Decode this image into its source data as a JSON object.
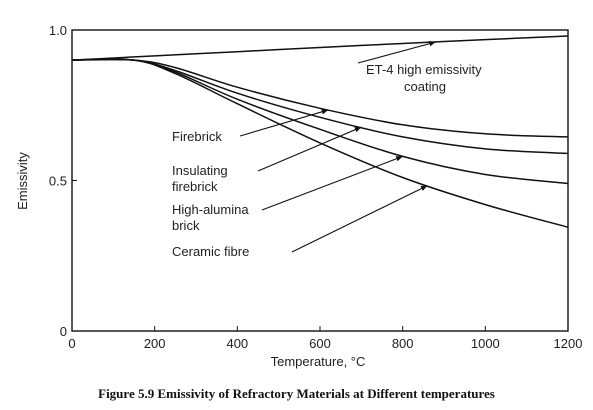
{
  "chart_data": {
    "type": "line",
    "xlabel": "Temperature, °C",
    "ylabel": "Emissivity",
    "xlim": [
      0,
      1200
    ],
    "ylim": [
      0,
      1.0
    ],
    "x_ticks": [
      "0",
      "200",
      "400",
      "600",
      "800",
      "1000",
      "1200"
    ],
    "y_ticks": [
      "0",
      "0.5",
      "1.0"
    ],
    "grid": false,
    "series": [
      {
        "name": "ET-4 high emissivity coating",
        "x": [
          0,
          200,
          400,
          600,
          800,
          1000,
          1200
        ],
        "y": [
          0.9,
          0.914,
          0.928,
          0.942,
          0.955,
          0.968,
          0.98
        ]
      },
      {
        "name": "Firebrick",
        "x": [
          0,
          150,
          250,
          400,
          600,
          800,
          1000,
          1200
        ],
        "y": [
          0.9,
          0.9,
          0.875,
          0.81,
          0.74,
          0.685,
          0.655,
          0.645
        ]
      },
      {
        "name": "Insulating firebrick",
        "x": [
          0,
          150,
          250,
          400,
          600,
          800,
          1000,
          1200
        ],
        "y": [
          0.9,
          0.9,
          0.865,
          0.79,
          0.71,
          0.645,
          0.605,
          0.59
        ]
      },
      {
        "name": "High-alumina brick",
        "x": [
          0,
          150,
          250,
          400,
          600,
          800,
          1000,
          1200
        ],
        "y": [
          0.9,
          0.9,
          0.86,
          0.77,
          0.67,
          0.58,
          0.52,
          0.49
        ]
      },
      {
        "name": "Ceramic fibre",
        "x": [
          0,
          150,
          250,
          400,
          600,
          800,
          1000,
          1200
        ],
        "y": [
          0.9,
          0.9,
          0.855,
          0.755,
          0.625,
          0.51,
          0.42,
          0.345
        ]
      }
    ],
    "labels": [
      {
        "text": "ET-4 high emissivity",
        "series": 0
      },
      {
        "text": "coating",
        "series": 0
      },
      {
        "text": "Firebrick",
        "series": 1
      },
      {
        "text": "Insulating",
        "series": 2
      },
      {
        "text": "firebrick",
        "series": 2
      },
      {
        "text": "High-alumina",
        "series": 3
      },
      {
        "text": "brick",
        "series": 3
      },
      {
        "text": "Ceramic fibre",
        "series": 4
      }
    ]
  },
  "caption": "Figure 5.9  Emissivity of  Refractory Materials at Different temperatures"
}
